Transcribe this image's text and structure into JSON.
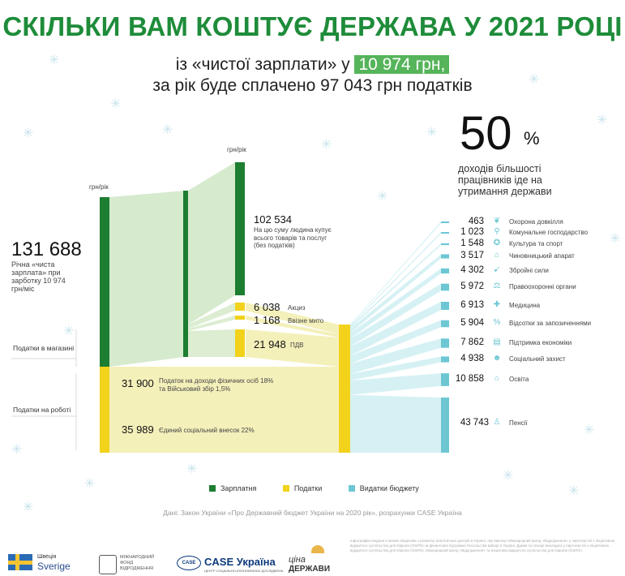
{
  "header": {
    "title": "СКІЛЬКИ ВАМ КОШТУЄ ДЕРЖАВА У 2021 РОЦІ",
    "subtitle_prefix": "із «чистої зарплати» у",
    "subtitle_highlight": "10 974 грн,",
    "subtitle_line2": "за рік буде сплачено 97 043 грн податків"
  },
  "share": {
    "value": "50",
    "unit": "%",
    "text": "доходів більшості працівників іде на утримання держави"
  },
  "salary": {
    "unit_label_left": "грн/рік",
    "unit_label_right": "грн/рік",
    "value": "131 688",
    "description": "Річна «чиста зарплата» при зарботку 10 974 грн/міс"
  },
  "side_labels": {
    "shop": "Податки в магазині",
    "work": "Податки на роботі"
  },
  "flows": {
    "spending": {
      "value": "102 534",
      "desc": "На цю суму людина купує всього товарів та послуг (без податків)"
    },
    "excise": {
      "value": "6 038",
      "label": "Акциз"
    },
    "import": {
      "value": "1 168",
      "label": "Ввізне мито"
    },
    "vat": {
      "value": "21 948",
      "label": "ПДВ"
    },
    "pit": {
      "value": "31 900",
      "label": "Податок на доходи фізичних осіб 18% та Військовий збір 1,5%"
    },
    "esv": {
      "value": "35 989",
      "label": "Єдиний соціальний внесок 22%"
    }
  },
  "budget": [
    {
      "value": "463",
      "label": "Охорона довкілля",
      "icon": "leaf-icon",
      "glyph": "❦"
    },
    {
      "value": "1 023",
      "label": "Комунальне господарство",
      "icon": "faucet-icon",
      "glyph": "⚲"
    },
    {
      "value": "1 548",
      "label": "Культура та спорт",
      "icon": "ball-icon",
      "glyph": "✪"
    },
    {
      "value": "3 517",
      "label": "Чиновницький апарат",
      "icon": "building-icon",
      "glyph": "⌂"
    },
    {
      "value": "4 302",
      "label": "Збройні сили",
      "icon": "rifle-icon",
      "glyph": "➹"
    },
    {
      "value": "5 972",
      "label": "Правоохоронні органи",
      "icon": "scales-icon",
      "glyph": "⚖"
    },
    {
      "value": "6 913",
      "label": "Медицина",
      "icon": "medicine-icon",
      "glyph": "✚"
    },
    {
      "value": "5 904",
      "label": "Відсотки за запозиченнями",
      "icon": "percent-icon",
      "glyph": "%"
    },
    {
      "value": "7 862",
      "label": "Підтримка економіки",
      "icon": "chart-icon",
      "glyph": "▤"
    },
    {
      "value": "4 938",
      "label": "Соціальний захист",
      "icon": "people-icon",
      "glyph": "☻"
    },
    {
      "value": "10 858",
      "label": "Освіта",
      "icon": "graduation-icon",
      "glyph": "⌂"
    },
    {
      "value": "43 743",
      "label": "Пенсії",
      "icon": "pensioner-icon",
      "glyph": "♙"
    }
  ],
  "chart_data": {
    "type": "sankey",
    "units": "грн/рік",
    "colors": {
      "salary": "#1d7d31",
      "taxes": "#f2d21b",
      "budget": "#6cc7d3",
      "flow_green": "#cfe6c5",
      "flow_yellow": "#f3eeb2",
      "flow_blue": "#cfeef2"
    },
    "nodes": {
      "salary": 131688,
      "spending": 102534,
      "excise": 6038,
      "import_duty": 1168,
      "vat": 21948,
      "pit_military": 31900,
      "esv": 35989,
      "taxes_total": 97043
    },
    "budget_values": [
      463,
      1023,
      1548,
      3517,
      4302,
      5972,
      6913,
      5904,
      7862,
      4938,
      10858,
      43743
    ]
  },
  "legend": [
    {
      "label": "Зарплатня",
      "color": "#1d7d31"
    },
    {
      "label": "Податки",
      "color": "#f2d21b"
    },
    {
      "label": "Видатки бюджету",
      "color": "#6cc7d3"
    }
  ],
  "source": "Дані: Закон України «Про Державний бюджет України на 2020 рік», розрахунки CASE Україна",
  "logos": {
    "sweden_top": "Швеція",
    "sweden_bottom": "Sverige",
    "irf": "МІЖНАРОДНИЙ ФОНД ВІДРОДЖЕННЯ",
    "case_mark": "CASE",
    "case_name": "CASE Україна",
    "case_sub": "ЦЕНТР СОЦІАЛЬНО-ЕКОНОМІЧНИХ ДОСЛІДЖЕНЬ",
    "tsina_top": "ціна",
    "tsina_bottom": "ДЕРЖАВИ"
  },
  "fineprint": "Інфографіка видана в межах ініціативи з розвитку аналітичних центрів в Україні, яку виконує Міжнародний фонд «Відродження» у партнерстві з Ініціативою відкритого суспільства для Європи (OSIFE) за фінансової підтримки Посольства Швеції в Україні. Думки та позиції викладені у партнерстві з Ініціативою відкритого суспільства для Європи (OSIFE). Міжнародний фонд «Відродження» та Ініціатива відкритого суспільства для Європи (OSIFE)."
}
